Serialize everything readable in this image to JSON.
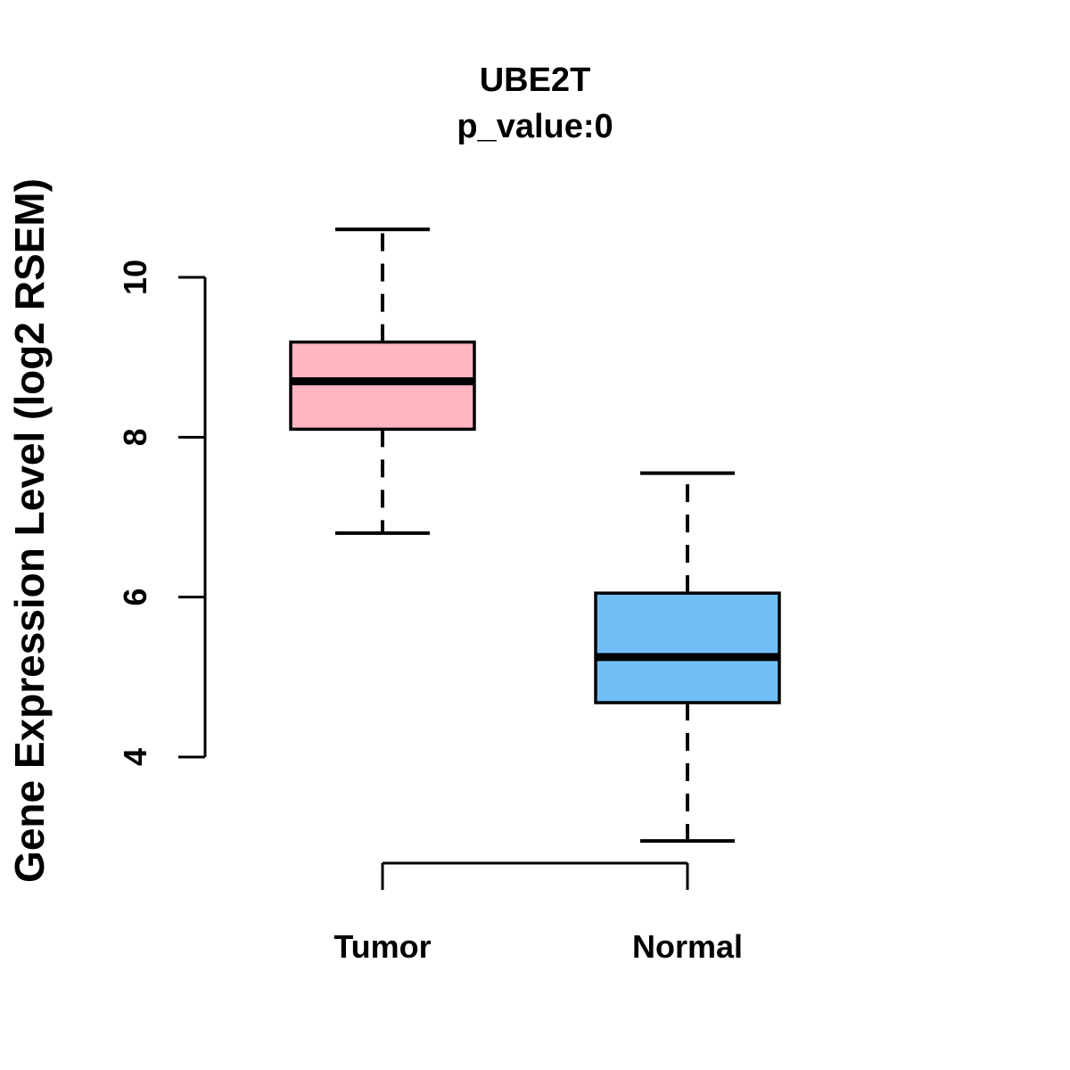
{
  "chart_data": {
    "type": "boxplot",
    "title": "UBE2T",
    "subtitle": "p_value:0",
    "ylabel": "Gene Expression Level (log2 RSEM)",
    "xlabel": "",
    "yticks": [
      4,
      6,
      8,
      10
    ],
    "ylim": [
      2.6,
      10.9
    ],
    "grid": false,
    "legend": "none",
    "axis_color": "#000000",
    "groups": [
      {
        "label": "Tumor",
        "color": "#FFB6C1",
        "stats": {
          "min": 6.8,
          "q1": 8.1,
          "median": 8.7,
          "q3": 9.19,
          "max": 10.6
        }
      },
      {
        "label": "Normal",
        "color": "#72BFF8",
        "stats": {
          "min": 2.95,
          "q1": 4.68,
          "median": 5.25,
          "q3": 6.05,
          "max": 7.55
        }
      }
    ]
  }
}
